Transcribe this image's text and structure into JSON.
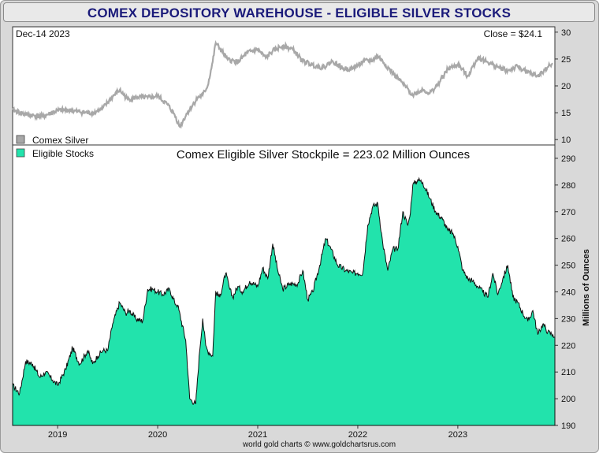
{
  "title": "COMEX DEPOSITORY WAREHOUSE - ELIGIBLE SILVER STOCKS",
  "footer": "world gold charts © www.goldchartsrus.com",
  "chart_data": [
    {
      "type": "line",
      "date_label": "Dec-14  2023",
      "close_label": "Close = $24.1",
      "legend": "Comex Silver",
      "color": "#a8a8a8",
      "ylim": [
        9,
        31
      ],
      "yticks": [
        10,
        15,
        20,
        25,
        30
      ],
      "x": [
        2018.55,
        2018.7,
        2018.85,
        2019.0,
        2019.1,
        2019.2,
        2019.35,
        2019.45,
        2019.55,
        2019.62,
        2019.7,
        2019.8,
        2019.9,
        2020.0,
        2020.1,
        2020.17,
        2020.22,
        2020.3,
        2020.4,
        2020.45,
        2020.5,
        2020.55,
        2020.58,
        2020.62,
        2020.7,
        2020.8,
        2020.9,
        2021.0,
        2021.08,
        2021.15,
        2021.25,
        2021.35,
        2021.45,
        2021.55,
        2021.65,
        2021.75,
        2021.85,
        2021.95,
        2022.05,
        2022.15,
        2022.2,
        2022.25,
        2022.35,
        2022.45,
        2022.55,
        2022.65,
        2022.72,
        2022.8,
        2022.9,
        2023.0,
        2023.1,
        2023.2,
        2023.3,
        2023.4,
        2023.5,
        2023.6,
        2023.7,
        2023.8,
        2023.9,
        2023.95
      ],
      "y": [
        15.5,
        14.6,
        14.3,
        15.4,
        15.5,
        15.2,
        14.9,
        15.8,
        18.0,
        19.2,
        17.5,
        17.9,
        17.8,
        18.1,
        16.5,
        14.6,
        12.4,
        15.1,
        17.8,
        18.3,
        20.0,
        24.5,
        28.0,
        27.0,
        24.9,
        24.4,
        26.2,
        26.8,
        25.2,
        26.5,
        27.5,
        26.8,
        24.6,
        23.9,
        23.4,
        24.6,
        23.2,
        23.2,
        24.5,
        24.8,
        25.6,
        24.5,
        22.4,
        20.4,
        18.3,
        19.3,
        18.6,
        20.2,
        23.1,
        24.0,
        21.8,
        25.3,
        24.4,
        23.5,
        22.8,
        23.6,
        22.5,
        21.8,
        23.5,
        24.1
      ]
    },
    {
      "type": "area",
      "title": "Comex Eligible Silver Stockpile = 223.02 Million Ounces",
      "legend": "Eligible Stocks",
      "color": "#22e3ac",
      "ylabel": "Millions of Ounces",
      "ylim": [
        190,
        295
      ],
      "yticks": [
        190,
        200,
        210,
        220,
        230,
        240,
        250,
        260,
        270,
        280,
        290
      ],
      "xticks": [
        "2019",
        "2020",
        "2021",
        "2022",
        "2023"
      ],
      "xtick_values": [
        2019,
        2020,
        2021,
        2022,
        2023
      ],
      "xlim": [
        2018.55,
        2023.97
      ],
      "x": [
        2018.55,
        2018.62,
        2018.68,
        2018.75,
        2018.82,
        2018.88,
        2018.95,
        2019.0,
        2019.08,
        2019.15,
        2019.22,
        2019.3,
        2019.35,
        2019.4,
        2019.45,
        2019.5,
        2019.55,
        2019.62,
        2019.68,
        2019.72,
        2019.78,
        2019.85,
        2019.9,
        2019.95,
        2020.0,
        2020.05,
        2020.12,
        2020.17,
        2020.2,
        2020.28,
        2020.32,
        2020.38,
        2020.42,
        2020.45,
        2020.48,
        2020.5,
        2020.55,
        2020.58,
        2020.62,
        2020.68,
        2020.72,
        2020.75,
        2020.8,
        2020.85,
        2020.92,
        2021.0,
        2021.05,
        2021.1,
        2021.15,
        2021.2,
        2021.25,
        2021.32,
        2021.4,
        2021.45,
        2021.5,
        2021.55,
        2021.62,
        2021.68,
        2021.72,
        2021.8,
        2021.88,
        2021.95,
        2022.0,
        2022.05,
        2022.1,
        2022.15,
        2022.2,
        2022.25,
        2022.3,
        2022.35,
        2022.4,
        2022.45,
        2022.5,
        2022.52,
        2022.55,
        2022.6,
        2022.65,
        2022.72,
        2022.78,
        2022.85,
        2022.9,
        2022.95,
        2023.0,
        2023.05,
        2023.1,
        2023.15,
        2023.2,
        2023.25,
        2023.3,
        2023.35,
        2023.4,
        2023.45,
        2023.5,
        2023.55,
        2023.6,
        2023.65,
        2023.7,
        2023.75,
        2023.8,
        2023.85,
        2023.9,
        2023.95,
        2023.97
      ],
      "y": [
        205,
        202,
        214,
        213,
        208,
        210,
        207,
        205,
        211,
        219,
        213,
        218,
        213,
        216,
        218,
        218,
        228,
        236,
        232,
        233,
        230,
        229,
        241,
        241,
        240,
        239,
        241,
        236,
        235,
        222,
        200,
        198,
        218,
        230,
        220,
        218,
        216,
        240,
        238,
        247,
        241,
        238,
        242,
        240,
        244,
        242,
        249,
        245,
        258,
        248,
        241,
        243,
        243,
        248,
        237,
        240,
        250,
        260,
        257,
        250,
        248,
        247,
        247,
        247,
        265,
        272,
        273,
        258,
        248,
        256,
        256,
        270,
        265,
        268,
        280,
        282,
        281,
        275,
        270,
        267,
        263,
        262,
        257,
        248,
        245,
        244,
        242,
        240,
        238,
        247,
        239,
        245,
        250,
        238,
        236,
        232,
        229,
        233,
        224,
        228,
        225,
        224,
        223
      ]
    }
  ]
}
